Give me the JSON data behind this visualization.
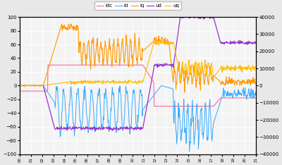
{
  "title": "",
  "left_ylim": [
    -100,
    100
  ],
  "right_ylim": [
    -40000,
    40000
  ],
  "left_yticks": [
    -100,
    -80,
    -60,
    -40,
    -20,
    0,
    20,
    40,
    60,
    80,
    100
  ],
  "right_yticks": [
    -40000,
    -30000,
    -20000,
    -10000,
    0,
    10000,
    20000,
    30000,
    40000
  ],
  "bg_color": "#e8e8e8",
  "plot_bg_color": "#f4f4f4",
  "grid_color": "#ffffff",
  "legend_labels": [
    "idc",
    "id",
    "iq",
    "ud",
    "uq"
  ],
  "legend_colors": [
    "#ff6699",
    "#33aaff",
    "#ff9900",
    "#9933cc",
    "#ffbb00"
  ],
  "n_points": 600
}
